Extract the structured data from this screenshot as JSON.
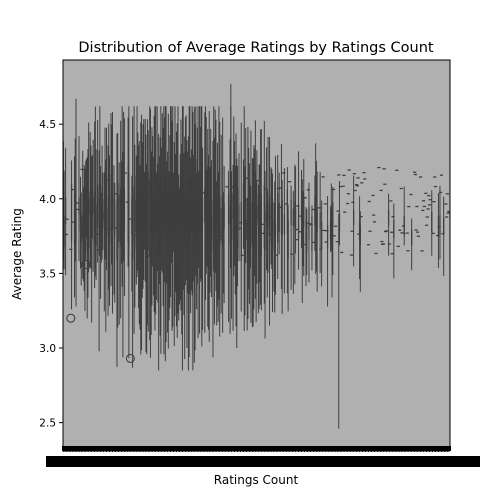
{
  "chart_data": {
    "type": "box",
    "title": "Distribution of Average Ratings by Ratings Count",
    "xlabel": "Ratings Count",
    "ylabel": "Average Rating",
    "ylim": [
      2.33,
      4.93
    ],
    "yticks": [
      2.5,
      3.0,
      3.5,
      4.0,
      4.5
    ],
    "ytick_labels": [
      "2.5",
      "3.0",
      "3.5",
      "4.0",
      "4.5"
    ],
    "xtick_labels_legible": false,
    "grid": false,
    "legend": "none",
    "box_color": "#b0b0b0",
    "line_color": "#3f3f3f",
    "series_summary": {
      "approx_category_count": 520,
      "median_range": [
        3.85,
        4.1
      ],
      "notes": "one narrow box per distinct Ratings Count value; x tick labels overlap into an illegible black band"
    },
    "highlighted_outliers": [
      {
        "category_index": 10,
        "value": 3.2
      },
      {
        "category_index": 30,
        "value": 3.56
      },
      {
        "category_index": 90,
        "value": 2.93
      }
    ],
    "extreme_points": [
      {
        "category_index": 17,
        "value": 4.67
      },
      {
        "category_index": 168,
        "value": 2.85
      },
      {
        "category_index": 225,
        "value": 4.77
      },
      {
        "category_index": 370,
        "value": 2.46
      }
    ]
  }
}
